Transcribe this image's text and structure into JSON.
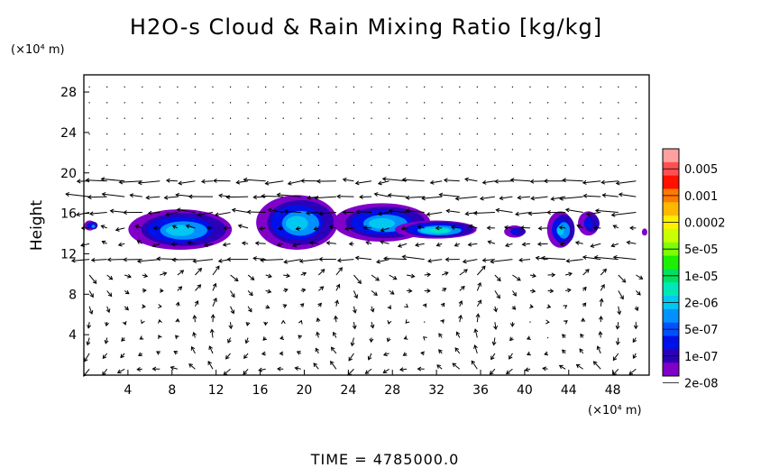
{
  "title": "H2O-s Cloud & Rain Mixing Ratio [kg/kg]",
  "time_label": "TIME  =  4785000.0",
  "chart_data": {
    "type": "heatmap",
    "title": "H2O-s Cloud & Rain Mixing Ratio [kg/kg]",
    "xlabel": "",
    "ylabel": "Height",
    "x_unit": "(×10⁴ m)",
    "y_unit": "(×10⁴ m)",
    "xlim": [
      0,
      51.3
    ],
    "ylim": [
      0,
      29.7
    ],
    "x_ticks": [
      4,
      8,
      12,
      16,
      20,
      24,
      28,
      32,
      36,
      40,
      44,
      48
    ],
    "y_ticks": [
      4,
      8,
      12,
      16,
      20,
      24,
      28
    ],
    "grid": false,
    "overlay": "wind vector field (arrows)",
    "colorbar": {
      "labels": [
        "0.005",
        "0.001",
        "0.0002",
        "5e-05",
        "1e-05",
        "2e-06",
        "5e-07",
        "1e-07",
        "2e-08"
      ],
      "colors": [
        "#ff9fa0",
        "#ff5050",
        "#ff1000",
        "#ff7a00",
        "#ffb800",
        "#ffef00",
        "#c9ff00",
        "#7cff00",
        "#1cf000",
        "#00e060",
        "#00e8b8",
        "#00c8f0",
        "#0090ff",
        "#0050ff",
        "#0010e8",
        "#2c00b8",
        "#8000c8"
      ]
    },
    "cloud_regions": [
      {
        "x_range": [
          0.2,
          1.2
        ],
        "y_range": [
          14.3,
          15.3
        ],
        "max_level": "2e-06"
      },
      {
        "x_range": [
          4.2,
          13.6
        ],
        "y_range": [
          12.4,
          16.4
        ],
        "max_level": "1e-05"
      },
      {
        "x_range": [
          15.8,
          23.2
        ],
        "y_range": [
          12.4,
          17.8
        ],
        "max_level": "1e-05"
      },
      {
        "x_range": [
          22.8,
          31.6
        ],
        "y_range": [
          13.2,
          17.0
        ],
        "max_level": "1e-05"
      },
      {
        "x_range": [
          28.4,
          35.8
        ],
        "y_range": [
          13.5,
          15.3
        ],
        "max_level": "5e-05"
      },
      {
        "x_range": [
          38.3,
          40.2
        ],
        "y_range": [
          13.6,
          14.8
        ],
        "max_level": "5e-07"
      },
      {
        "x_range": [
          42.2,
          44.6
        ],
        "y_range": [
          12.6,
          16.2
        ],
        "max_level": "1e-05"
      },
      {
        "x_range": [
          45.0,
          46.9
        ],
        "y_range": [
          13.8,
          16.2
        ],
        "max_level": "5e-07"
      },
      {
        "x_range": [
          50.8,
          51.3
        ],
        "y_range": [
          13.8,
          14.5
        ],
        "max_level": "2e-08"
      }
    ]
  }
}
